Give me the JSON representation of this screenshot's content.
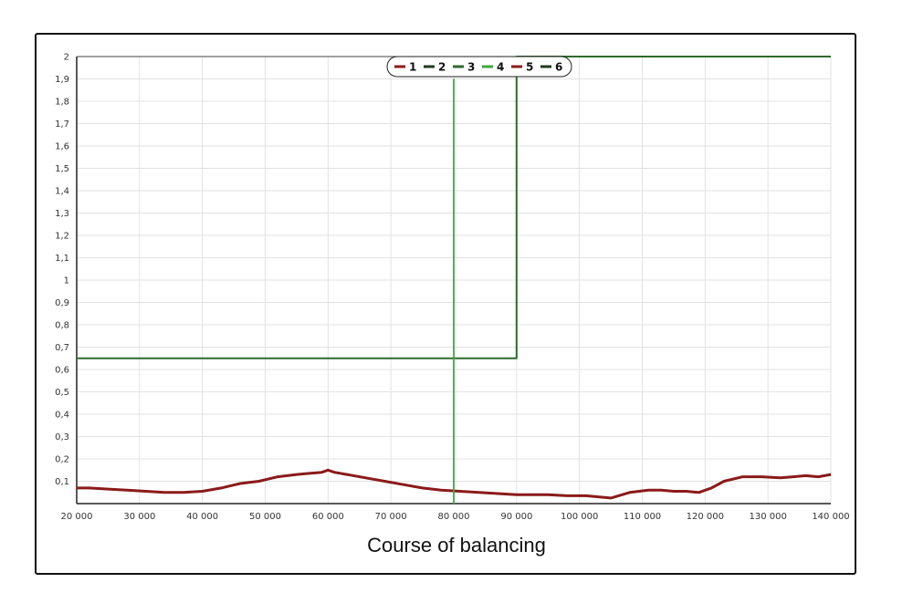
{
  "caption": "Course of balancing",
  "chart_data": {
    "type": "line",
    "title": "",
    "xlabel": "",
    "ylabel": "",
    "xlim": [
      20000,
      140000
    ],
    "ylim": [
      0,
      2
    ],
    "grid": true,
    "legend": "top-center",
    "x_ticks": [
      "20 000",
      "30 000",
      "40 000",
      "50 000",
      "60 000",
      "70 000",
      "80 000",
      "90 000",
      "100 000",
      "110 000",
      "120 000",
      "130 000",
      "140 000"
    ],
    "y_ticks": [
      "0,1",
      "0,2",
      "0,3",
      "0,4",
      "0,5",
      "0,6",
      "0,7",
      "0,8",
      "0,9",
      "1",
      "1,1",
      "1,2",
      "1,3",
      "1,4",
      "1,5",
      "1,6",
      "1,7",
      "1,8",
      "1,9",
      "2"
    ],
    "series": [
      {
        "name": "1",
        "color": "#8b1a1a",
        "x": [
          20000,
          22000,
          25000,
          28000,
          31000,
          34000,
          37000,
          40000,
          43000,
          46000,
          49000,
          52000,
          55000,
          57000,
          59000,
          60000,
          61000,
          63000,
          66000,
          69000,
          72000,
          75000,
          78000,
          81000,
          84000,
          87000,
          90000,
          92000,
          95000,
          98000,
          101000,
          103000,
          105000,
          108000,
          111000,
          113000,
          115000,
          117000,
          119000,
          121000,
          123000,
          126000,
          129000,
          132000,
          134000,
          136000,
          138000,
          140000
        ],
        "y": [
          0.07,
          0.07,
          0.065,
          0.06,
          0.055,
          0.05,
          0.05,
          0.055,
          0.07,
          0.09,
          0.1,
          0.12,
          0.13,
          0.135,
          0.14,
          0.15,
          0.14,
          0.13,
          0.115,
          0.1,
          0.085,
          0.07,
          0.06,
          0.055,
          0.05,
          0.045,
          0.04,
          0.04,
          0.04,
          0.035,
          0.035,
          0.03,
          0.025,
          0.05,
          0.06,
          0.06,
          0.055,
          0.055,
          0.05,
          0.07,
          0.1,
          0.12,
          0.12,
          0.115,
          0.12,
          0.125,
          0.12,
          0.13
        ]
      },
      {
        "name": "2",
        "color": "#1f3a1f",
        "x": [],
        "y": []
      },
      {
        "name": "3",
        "color": "#2e6b2e",
        "x": [
          20000,
          90000,
          90000,
          140000
        ],
        "y": [
          0.65,
          0.65,
          2.0,
          2.0
        ]
      },
      {
        "name": "4",
        "color": "#3fa83f",
        "x": [
          80000,
          80000
        ],
        "y": [
          0.0,
          1.9
        ]
      },
      {
        "name": "5",
        "color": "#8b1a1a",
        "x": [],
        "y": []
      },
      {
        "name": "6",
        "color": "#1f3a1f",
        "x": [],
        "y": []
      }
    ]
  }
}
